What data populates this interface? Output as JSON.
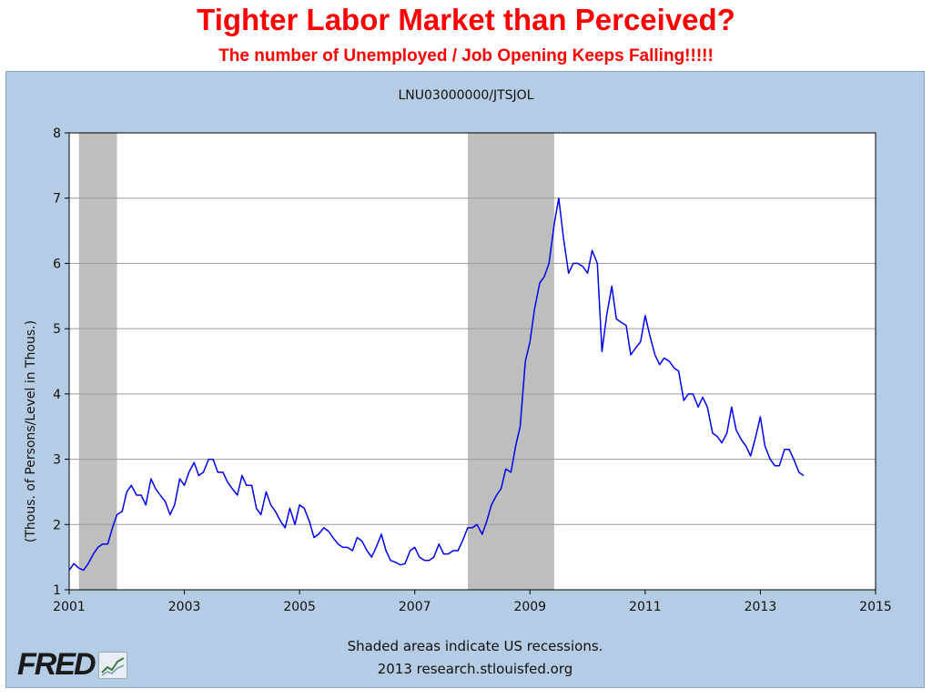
{
  "slide": {
    "title": "Tighter Labor Market than Perceived?",
    "subtitle": "The number of Unemployed / Job Opening Keeps Falling!!!!!"
  },
  "footer": {
    "note": "Shaded areas indicate US recessions.",
    "source": "2013 research.stlouisfed.org",
    "logo_text": "FRED"
  },
  "colors": {
    "panel_bg": "#b4cce4",
    "plot_bg": "#ffffff",
    "line": "#0000ee",
    "recession": "#bebebe",
    "grid": "#9a9a9a",
    "title_red": "#ff0000"
  },
  "chart_data": {
    "type": "line",
    "title": "LNU03000000/JTSJOL",
    "xlabel": "",
    "ylabel": "(Thous. of Persons/Level in Thous.)",
    "xlim": [
      2001,
      2015
    ],
    "ylim": [
      1,
      8
    ],
    "xticks": [
      2001,
      2003,
      2005,
      2007,
      2009,
      2011,
      2013,
      2015
    ],
    "yticks": [
      1,
      2,
      3,
      4,
      5,
      6,
      7,
      8
    ],
    "grid": "horizontal",
    "recessions": [
      [
        2001.17,
        2001.83
      ],
      [
        2007.92,
        2009.42
      ]
    ],
    "series": [
      {
        "name": "",
        "x": [
          2001.0,
          2001.08,
          2001.17,
          2001.25,
          2001.33,
          2001.42,
          2001.5,
          2001.58,
          2001.67,
          2001.75,
          2001.83,
          2001.92,
          2002.0,
          2002.08,
          2002.17,
          2002.25,
          2002.33,
          2002.42,
          2002.5,
          2002.58,
          2002.67,
          2002.75,
          2002.83,
          2002.92,
          2003.0,
          2003.08,
          2003.17,
          2003.25,
          2003.33,
          2003.42,
          2003.5,
          2003.58,
          2003.67,
          2003.75,
          2003.83,
          2003.92,
          2004.0,
          2004.08,
          2004.17,
          2004.25,
          2004.33,
          2004.42,
          2004.5,
          2004.58,
          2004.67,
          2004.75,
          2004.83,
          2004.92,
          2005.0,
          2005.08,
          2005.17,
          2005.25,
          2005.33,
          2005.42,
          2005.5,
          2005.58,
          2005.67,
          2005.75,
          2005.83,
          2005.92,
          2006.0,
          2006.08,
          2006.17,
          2006.25,
          2006.33,
          2006.42,
          2006.5,
          2006.58,
          2006.67,
          2006.75,
          2006.83,
          2006.92,
          2007.0,
          2007.08,
          2007.17,
          2007.25,
          2007.33,
          2007.42,
          2007.5,
          2007.58,
          2007.67,
          2007.75,
          2007.83,
          2007.92,
          2008.0,
          2008.08,
          2008.17,
          2008.25,
          2008.33,
          2008.42,
          2008.5,
          2008.58,
          2008.67,
          2008.75,
          2008.83,
          2008.92,
          2009.0,
          2009.08,
          2009.17,
          2009.25,
          2009.33,
          2009.42,
          2009.5,
          2009.58,
          2009.67,
          2009.75,
          2009.83,
          2009.92,
          2010.0,
          2010.08,
          2010.17,
          2010.25,
          2010.33,
          2010.42,
          2010.5,
          2010.58,
          2010.67,
          2010.75,
          2010.83,
          2010.92,
          2011.0,
          2011.08,
          2011.17,
          2011.25,
          2011.33,
          2011.42,
          2011.5,
          2011.58,
          2011.67,
          2011.75,
          2011.83,
          2011.92,
          2012.0,
          2012.08,
          2012.17,
          2012.25,
          2012.33,
          2012.42,
          2012.5,
          2012.58,
          2012.67,
          2012.75,
          2012.83,
          2012.92,
          2013.0,
          2013.08,
          2013.17,
          2013.25,
          2013.33,
          2013.42,
          2013.5,
          2013.58,
          2013.67,
          2013.75
        ],
        "values": [
          1.3,
          1.4,
          1.33,
          1.3,
          1.4,
          1.55,
          1.65,
          1.7,
          1.7,
          1.95,
          2.15,
          2.2,
          2.5,
          2.6,
          2.45,
          2.45,
          2.3,
          2.7,
          2.55,
          2.45,
          2.35,
          2.15,
          2.3,
          2.7,
          2.6,
          2.8,
          2.95,
          2.75,
          2.8,
          3.0,
          3.0,
          2.8,
          2.8,
          2.65,
          2.55,
          2.45,
          2.75,
          2.6,
          2.6,
          2.25,
          2.15,
          2.5,
          2.3,
          2.2,
          2.05,
          1.95,
          2.25,
          2.0,
          2.3,
          2.25,
          2.05,
          1.8,
          1.85,
          1.95,
          1.9,
          1.8,
          1.7,
          1.65,
          1.65,
          1.6,
          1.8,
          1.75,
          1.6,
          1.5,
          1.65,
          1.85,
          1.6,
          1.45,
          1.42,
          1.38,
          1.4,
          1.6,
          1.65,
          1.5,
          1.45,
          1.45,
          1.5,
          1.7,
          1.55,
          1.55,
          1.6,
          1.6,
          1.75,
          1.95,
          1.95,
          2.0,
          1.85,
          2.05,
          2.3,
          2.45,
          2.55,
          2.85,
          2.8,
          3.2,
          3.5,
          4.5,
          4.8,
          5.3,
          5.7,
          5.8,
          6.0,
          6.6,
          7.0,
          6.4,
          5.85,
          6.0,
          6.0,
          5.95,
          5.85,
          6.2,
          6.0,
          4.65,
          5.2,
          5.65,
          5.15,
          5.1,
          5.05,
          4.6,
          4.7,
          4.8,
          5.2,
          4.9,
          4.6,
          4.45,
          4.55,
          4.5,
          4.4,
          4.35,
          3.9,
          4.0,
          4.0,
          3.8,
          3.95,
          3.8,
          3.4,
          3.35,
          3.25,
          3.4,
          3.8,
          3.45,
          3.3,
          3.2,
          3.05,
          3.35,
          3.65,
          3.2,
          3.0,
          2.9,
          2.9,
          3.15,
          3.15,
          3.0,
          2.8,
          2.75
        ]
      }
    ]
  }
}
